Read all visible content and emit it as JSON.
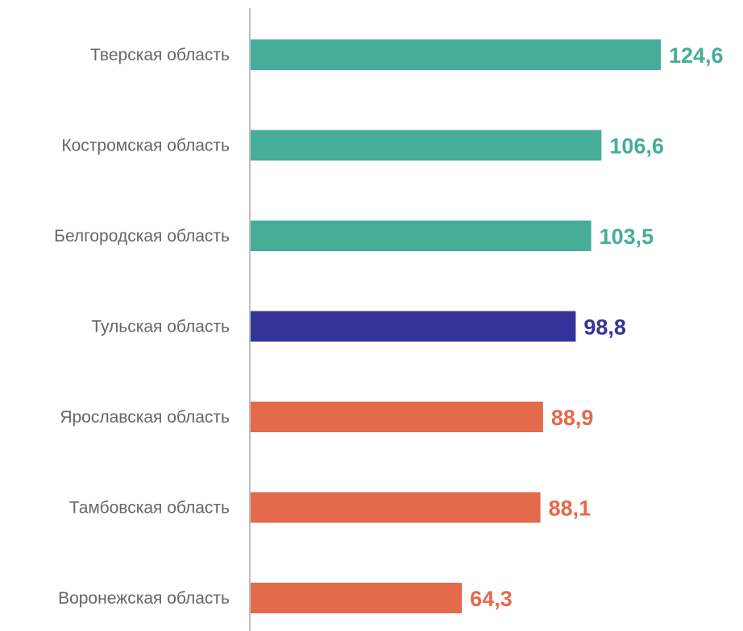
{
  "chart_data": {
    "type": "bar",
    "orientation": "horizontal",
    "categories": [
      "Тверская область",
      "Костромская область",
      "Белгородская область",
      "Тульская область",
      "Ярославская область",
      "Тамбовская область",
      "Воронежская область"
    ],
    "values": [
      124.6,
      106.6,
      103.5,
      98.8,
      88.9,
      88.1,
      64.3
    ],
    "value_labels": [
      "124,6",
      "106,6",
      "103,5",
      "98,8",
      "88,9",
      "88,1",
      "64,3"
    ],
    "bar_colors": [
      "#45AD98",
      "#45AD98",
      "#45AD98",
      "#353399",
      "#E36A4A",
      "#E36A4A",
      "#E36A4A"
    ],
    "title": "",
    "xlabel": "",
    "ylabel": "",
    "xlim": [
      0,
      124.6
    ],
    "grid": false,
    "legend": "none"
  },
  "colors": {
    "axis": "#BFBFBF",
    "category_text": "#666666"
  }
}
